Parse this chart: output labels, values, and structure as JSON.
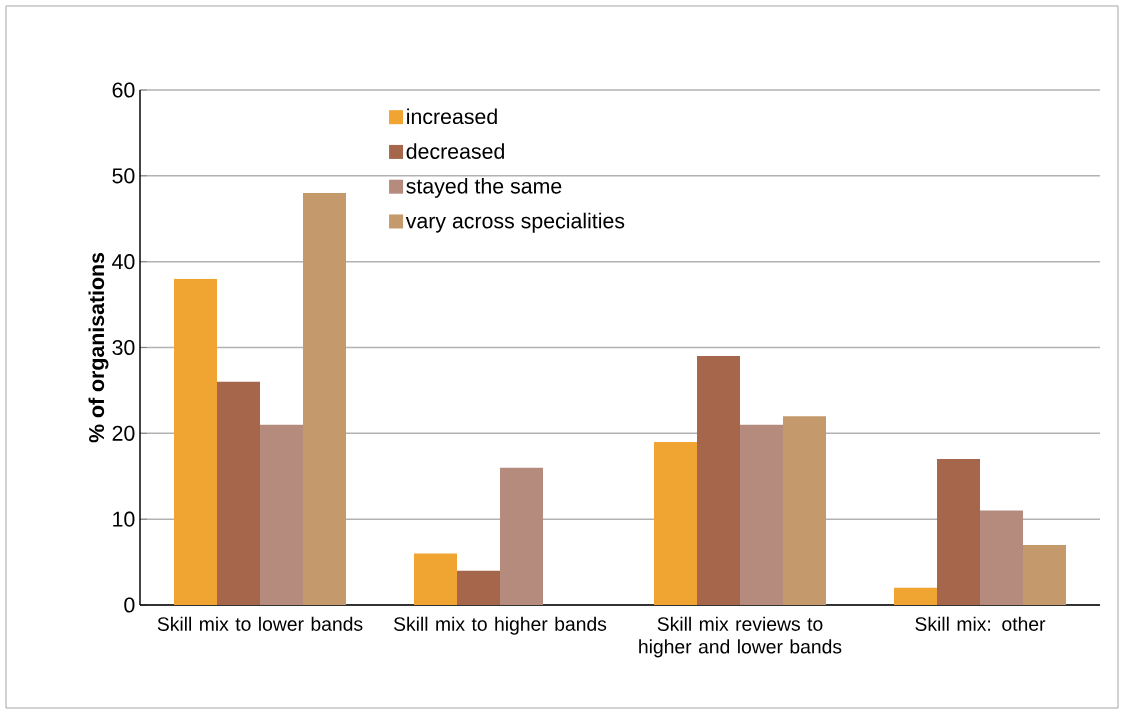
{
  "chart_data": {
    "type": "bar",
    "ylabel": "% of organisations",
    "categories": [
      "Skill mix to lower bands",
      "Skill mix to higher bands",
      "Skill mix reviews to higher and lower bands",
      "Skill mix: other"
    ],
    "series": [
      {
        "name": "increased",
        "color": "#f0a431",
        "values": [
          38,
          6,
          19,
          2
        ]
      },
      {
        "name": "decreased",
        "color": "#a5664b",
        "values": [
          26,
          4,
          29,
          17
        ]
      },
      {
        "name": "stayed the same",
        "color": "#b58b7e",
        "values": [
          21,
          16,
          21,
          11
        ]
      },
      {
        "name": "vary across specialities",
        "color": "#c4996b",
        "values": [
          48,
          null,
          22,
          7
        ]
      }
    ],
    "ylim": [
      0,
      60
    ],
    "yticks": [
      0,
      10,
      20,
      30,
      40,
      50,
      60
    ],
    "grid": "y",
    "legend": "top"
  }
}
